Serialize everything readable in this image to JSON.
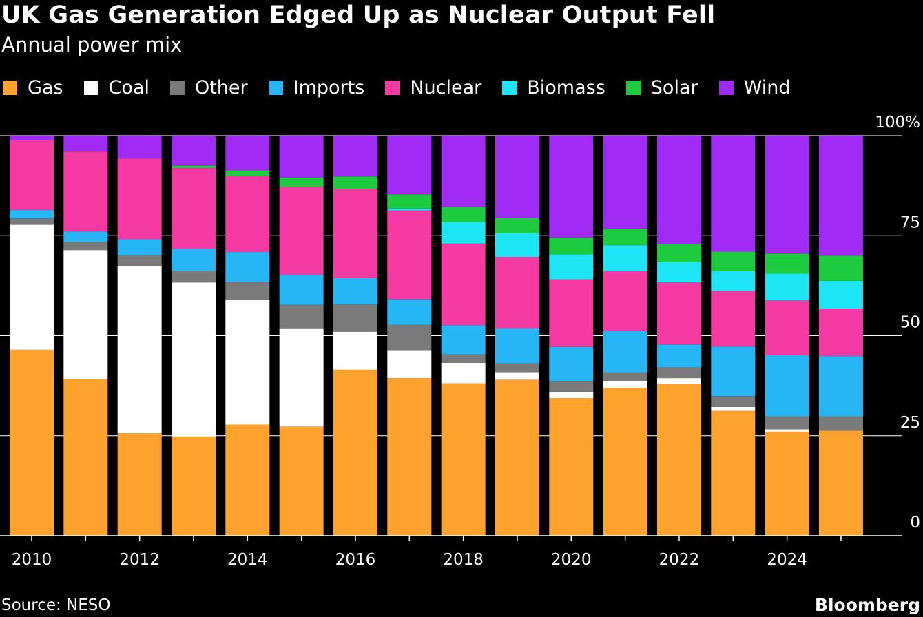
{
  "header": {
    "title": "UK Gas Generation Edged Up as Nuclear Output Fell",
    "subtitle": "Annual power mix"
  },
  "footer": {
    "source": "Source: NESO",
    "brand": "Bloomberg"
  },
  "colors": {
    "Gas": "#ffa22e",
    "Coal": "#ffffff",
    "Other": "#7a7a7a",
    "Imports": "#27b6f5",
    "Nuclear": "#f53ba3",
    "Biomass": "#1ee5f5",
    "Solar": "#1ccc3e",
    "Wind": "#a12bf5",
    "background": "#000000",
    "text": "#ffffff"
  },
  "chart_data": {
    "type": "bar",
    "stacked": true,
    "title": "UK Gas Generation Edged Up as Nuclear Output Fell",
    "subtitle": "Annual power mix",
    "categories": [
      "2010",
      "2011",
      "2012",
      "2013",
      "2014",
      "2015",
      "2016",
      "2017",
      "2018",
      "2019",
      "2020",
      "2021",
      "2022",
      "2023",
      "2024",
      "2025"
    ],
    "x_tick_labels": [
      "2010",
      "",
      "2012",
      "",
      "2014",
      "",
      "2016",
      "",
      "2018",
      "",
      "2020",
      "",
      "2022",
      "",
      "2024",
      ""
    ],
    "y_ticks": [
      "0",
      "25",
      "50",
      "75",
      "100%"
    ],
    "y_tick_values": [
      0,
      25,
      50,
      75,
      100
    ],
    "ylim": [
      0,
      100
    ],
    "y_axis_position": "right",
    "legend_position": "top-left",
    "grid": "horizontal",
    "series": [
      {
        "name": "Gas",
        "values": [
          46.5,
          39.2,
          25.6,
          24.8,
          27.8,
          27.3,
          41.5,
          39.4,
          38.1,
          39.0,
          34.4,
          37.0,
          37.9,
          31.2,
          26.0,
          26.3
        ]
      },
      {
        "name": "Coal",
        "values": [
          31.2,
          32.2,
          41.9,
          38.5,
          31.2,
          24.4,
          9.5,
          7.0,
          5.1,
          1.9,
          1.6,
          1.6,
          1.5,
          1.0,
          0.6,
          0.0
        ]
      },
      {
        "name": "Other",
        "values": [
          1.6,
          2.0,
          2.6,
          2.9,
          4.4,
          6.0,
          6.8,
          6.3,
          2.1,
          2.2,
          2.6,
          2.2,
          2.7,
          2.7,
          3.2,
          3.5
        ]
      },
      {
        "name": "Imports",
        "values": [
          2.1,
          2.6,
          4.0,
          5.5,
          7.5,
          7.5,
          6.6,
          6.4,
          7.3,
          8.7,
          8.6,
          10.4,
          5.7,
          12.4,
          15.3,
          15.1
        ]
      },
      {
        "name": "Nuclear",
        "values": [
          17.4,
          20.0,
          20.2,
          20.2,
          19.0,
          22.0,
          22.3,
          22.2,
          20.4,
          17.9,
          16.9,
          14.9,
          15.5,
          13.9,
          13.7,
          11.9
        ]
      },
      {
        "name": "Biomass",
        "values": [
          0.0,
          0.0,
          0.0,
          0.0,
          0.0,
          0.0,
          0.0,
          0.5,
          5.4,
          5.9,
          6.2,
          6.5,
          5.1,
          4.9,
          6.7,
          6.9
        ]
      },
      {
        "name": "Solar",
        "values": [
          0.0,
          0.0,
          0.0,
          0.6,
          1.4,
          2.3,
          3.1,
          3.5,
          3.8,
          3.8,
          4.2,
          4.1,
          4.5,
          4.9,
          5.0,
          6.3
        ]
      },
      {
        "name": "Wind",
        "values": [
          1.2,
          4.0,
          5.7,
          7.5,
          8.7,
          10.5,
          10.2,
          14.7,
          17.8,
          20.6,
          25.5,
          23.3,
          27.1,
          29.0,
          29.5,
          30.0
        ]
      }
    ]
  }
}
